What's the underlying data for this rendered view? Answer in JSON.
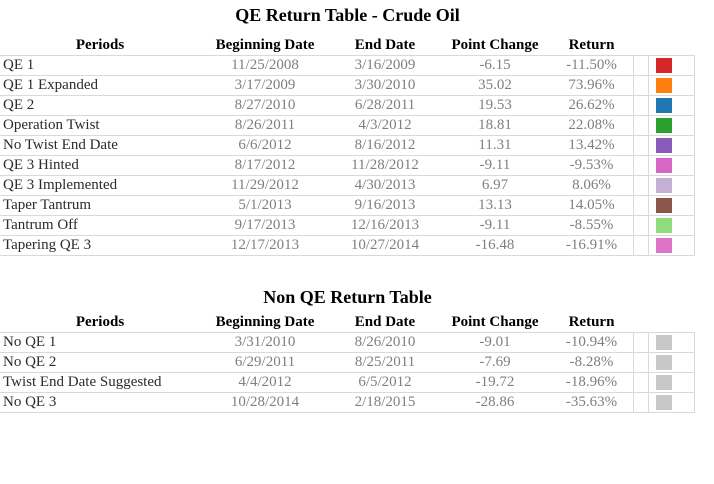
{
  "page": {
    "background": "#ffffff",
    "grid_color": "#d9d9d9",
    "period_text_color": "#2b2b2b",
    "value_text_color": "#7f7f7f"
  },
  "chart_data": [
    {
      "type": "table",
      "title": "QE Return Table - Crude Oil",
      "columns": [
        "Periods",
        "Beginning Date",
        "End Date",
        "Point Change",
        "Return"
      ],
      "rows": [
        {
          "period": "QE 1",
          "beginning_date": "11/25/2008",
          "end_date": "3/16/2009",
          "point_change": "-6.15",
          "return": "-11.50%",
          "swatch_color": "#d62728"
        },
        {
          "period": "QE 1 Expanded",
          "beginning_date": "3/17/2009",
          "end_date": "3/30/2010",
          "point_change": "35.02",
          "return": "73.96%",
          "swatch_color": "#ff7f0e"
        },
        {
          "period": "QE 2",
          "beginning_date": "8/27/2010",
          "end_date": "6/28/2011",
          "point_change": "19.53",
          "return": "26.62%",
          "swatch_color": "#1f77b4"
        },
        {
          "period": "Operation Twist",
          "beginning_date": "8/26/2011",
          "end_date": "4/3/2012",
          "point_change": "18.81",
          "return": "22.08%",
          "swatch_color": "#2ca02c"
        },
        {
          "period": "No Twist End Date",
          "beginning_date": "6/6/2012",
          "end_date": "8/16/2012",
          "point_change": "11.31",
          "return": "13.42%",
          "swatch_color": "#8a5bb8"
        },
        {
          "period": "QE 3 Hinted",
          "beginning_date": "8/17/2012",
          "end_date": "11/28/2012",
          "point_change": "-9.11",
          "return": "-9.53%",
          "swatch_color": "#d667c3"
        },
        {
          "period": "QE 3 Implemented",
          "beginning_date": "11/29/2012",
          "end_date": "4/30/2013",
          "point_change": "6.97",
          "return": "8.06%",
          "swatch_color": "#c5b0d5"
        },
        {
          "period": "Taper Tantrum",
          "beginning_date": "5/1/2013",
          "end_date": "9/16/2013",
          "point_change": "13.13",
          "return": "14.05%",
          "swatch_color": "#8c564b"
        },
        {
          "period": "Tantrum Off",
          "beginning_date": "9/17/2013",
          "end_date": "12/16/2013",
          "point_change": "-9.11",
          "return": "-8.55%",
          "swatch_color": "#8fdc80"
        },
        {
          "period": "Tapering QE 3",
          "beginning_date": "12/17/2013",
          "end_date": "10/27/2014",
          "point_change": "-16.48",
          "return": "-16.91%",
          "swatch_color": "#de74c8"
        }
      ]
    },
    {
      "type": "table",
      "title": "Non QE Return Table",
      "columns": [
        "Periods",
        "Beginning Date",
        "End Date",
        "Point Change",
        "Return"
      ],
      "rows": [
        {
          "period": "No QE 1",
          "beginning_date": "3/31/2010",
          "end_date": "8/26/2010",
          "point_change": "-9.01",
          "return": "-10.94%",
          "swatch_color": "#c8c8c8"
        },
        {
          "period": "No QE 2",
          "beginning_date": "6/29/2011",
          "end_date": "8/25/2011",
          "point_change": "-7.69",
          "return": "-8.28%",
          "swatch_color": "#c8c8c8"
        },
        {
          "period": "Twist End Date Suggested",
          "beginning_date": "4/4/2012",
          "end_date": "6/5/2012",
          "point_change": "-19.72",
          "return": "-18.96%",
          "swatch_color": "#c8c8c8"
        },
        {
          "period": "No QE 3",
          "beginning_date": "10/28/2014",
          "end_date": "2/18/2015",
          "point_change": "-28.86",
          "return": "-35.63%",
          "swatch_color": "#c8c8c8"
        }
      ]
    }
  ]
}
